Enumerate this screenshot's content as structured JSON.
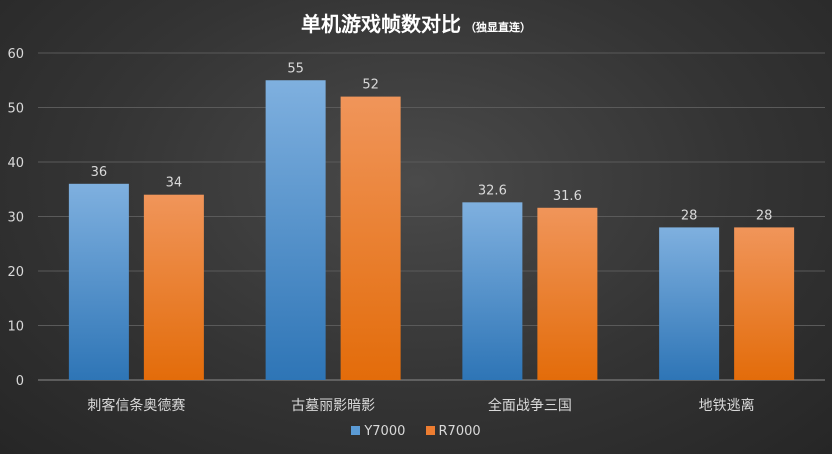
{
  "chart_data": {
    "type": "bar",
    "title": "单机游戏帧数对比",
    "subtitle": "（独显直连）",
    "categories": [
      "刺客信条奥德赛",
      "古墓丽影暗影",
      "全面战争三国",
      "地铁逃离"
    ],
    "series": [
      {
        "name": "Y7000",
        "values": [
          36,
          55,
          32.6,
          28
        ],
        "color": "#5b9bd5"
      },
      {
        "name": "R7000",
        "values": [
          34,
          52,
          31.6,
          28
        ],
        "color": "#ed7d31"
      }
    ],
    "ylim": [
      0,
      60
    ],
    "yticks": [
      0,
      10,
      20,
      30,
      40,
      50,
      60
    ],
    "grid": true,
    "legend_position": "bottom"
  }
}
